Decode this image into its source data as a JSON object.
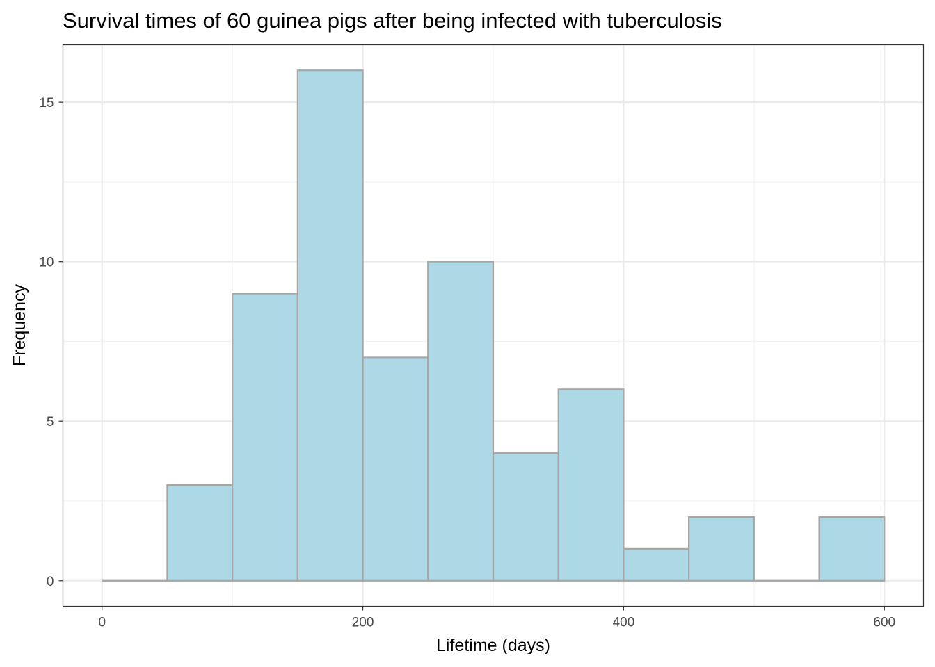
{
  "chart_data": {
    "type": "bar",
    "title": "Survival times of 60 guinea pigs after being infected with tuberculosis",
    "xlabel": "Lifetime (days)",
    "ylabel": "Frequency",
    "bin_width": 50,
    "bins": [
      {
        "start": 0,
        "end": 50,
        "count": 0
      },
      {
        "start": 50,
        "end": 100,
        "count": 3
      },
      {
        "start": 100,
        "end": 150,
        "count": 9
      },
      {
        "start": 150,
        "end": 200,
        "count": 16
      },
      {
        "start": 200,
        "end": 250,
        "count": 7
      },
      {
        "start": 250,
        "end": 300,
        "count": 10
      },
      {
        "start": 300,
        "end": 350,
        "count": 4
      },
      {
        "start": 350,
        "end": 400,
        "count": 6
      },
      {
        "start": 400,
        "end": 450,
        "count": 1
      },
      {
        "start": 450,
        "end": 500,
        "count": 2
      },
      {
        "start": 500,
        "end": 550,
        "count": 0
      },
      {
        "start": 550,
        "end": 600,
        "count": 2
      }
    ],
    "xlim": [
      -30,
      630
    ],
    "ylim": [
      -0.8,
      16.8
    ],
    "x_ticks": [
      0,
      200,
      400,
      600
    ],
    "x_minor_ticks": [
      100,
      300,
      500
    ],
    "y_ticks": [
      0,
      5,
      10,
      15
    ],
    "y_minor_ticks": [
      2.5,
      7.5,
      12.5
    ],
    "grid": true,
    "fill_color": "#add8e6",
    "outline_color": "#a6a6a6",
    "background": "#ffffff"
  }
}
